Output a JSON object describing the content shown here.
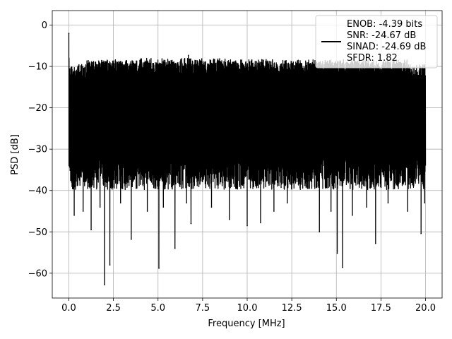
{
  "chart_data": {
    "type": "line",
    "title": "",
    "xlabel": "Frequency [MHz]",
    "ylabel": "PSD [dB]",
    "xlim": [
      -0.93,
      20.93
    ],
    "ylim": [
      -66,
      3.5
    ],
    "xticks": [
      0.0,
      2.5,
      5.0,
      7.5,
      10.0,
      12.5,
      15.0,
      17.5,
      20.0
    ],
    "xtick_labels": [
      "0.0",
      "2.5",
      "5.0",
      "7.5",
      "10.0",
      "12.5",
      "15.0",
      "17.5",
      "20.0"
    ],
    "yticks": [
      0,
      -10,
      -20,
      -30,
      -40,
      -50,
      -60
    ],
    "ytick_labels": [
      "0",
      "−10",
      "−20",
      "−30",
      "−40",
      "−50",
      "−60"
    ],
    "grid": true,
    "legend": {
      "placement": "upper right",
      "lines": [
        "ENOB: -4.39 bits",
        "SNR: -24.67 dB",
        "SINAD: -24.69 dB",
        "SFDR: 1.82"
      ]
    },
    "series": [
      {
        "color": "#000000",
        "style": "dense noise spectrum",
        "x_range": [
          0,
          20
        ],
        "dc_peak": {
          "x": 0.0,
          "y": -2.0
        },
        "envelope_top": -10,
        "max_peak": {
          "x": 6.7,
          "y": -7.3
        },
        "typical_floor": -35,
        "deep_nulls": [
          {
            "x": 0.3,
            "y": -46
          },
          {
            "x": 0.8,
            "y": -45
          },
          {
            "x": 1.25,
            "y": -49.5
          },
          {
            "x": 1.75,
            "y": -44
          },
          {
            "x": 2.0,
            "y": -62.8
          },
          {
            "x": 2.3,
            "y": -58
          },
          {
            "x": 2.9,
            "y": -43
          },
          {
            "x": 3.5,
            "y": -51.8
          },
          {
            "x": 4.4,
            "y": -45
          },
          {
            "x": 5.05,
            "y": -58.8
          },
          {
            "x": 5.3,
            "y": -44
          },
          {
            "x": 5.95,
            "y": -54
          },
          {
            "x": 6.6,
            "y": -43
          },
          {
            "x": 6.85,
            "y": -48
          },
          {
            "x": 8.0,
            "y": -44
          },
          {
            "x": 9.0,
            "y": -47
          },
          {
            "x": 10.0,
            "y": -48.5
          },
          {
            "x": 10.75,
            "y": -47.8
          },
          {
            "x": 11.5,
            "y": -45
          },
          {
            "x": 12.25,
            "y": -43
          },
          {
            "x": 14.05,
            "y": -50
          },
          {
            "x": 14.7,
            "y": -45
          },
          {
            "x": 15.05,
            "y": -55.2
          },
          {
            "x": 15.35,
            "y": -58.6
          },
          {
            "x": 15.9,
            "y": -46
          },
          {
            "x": 16.7,
            "y": -44
          },
          {
            "x": 17.2,
            "y": -52.8
          },
          {
            "x": 17.9,
            "y": -43
          },
          {
            "x": 19.0,
            "y": -45
          },
          {
            "x": 19.75,
            "y": -50.4
          },
          {
            "x": 19.95,
            "y": -43
          }
        ]
      }
    ]
  }
}
